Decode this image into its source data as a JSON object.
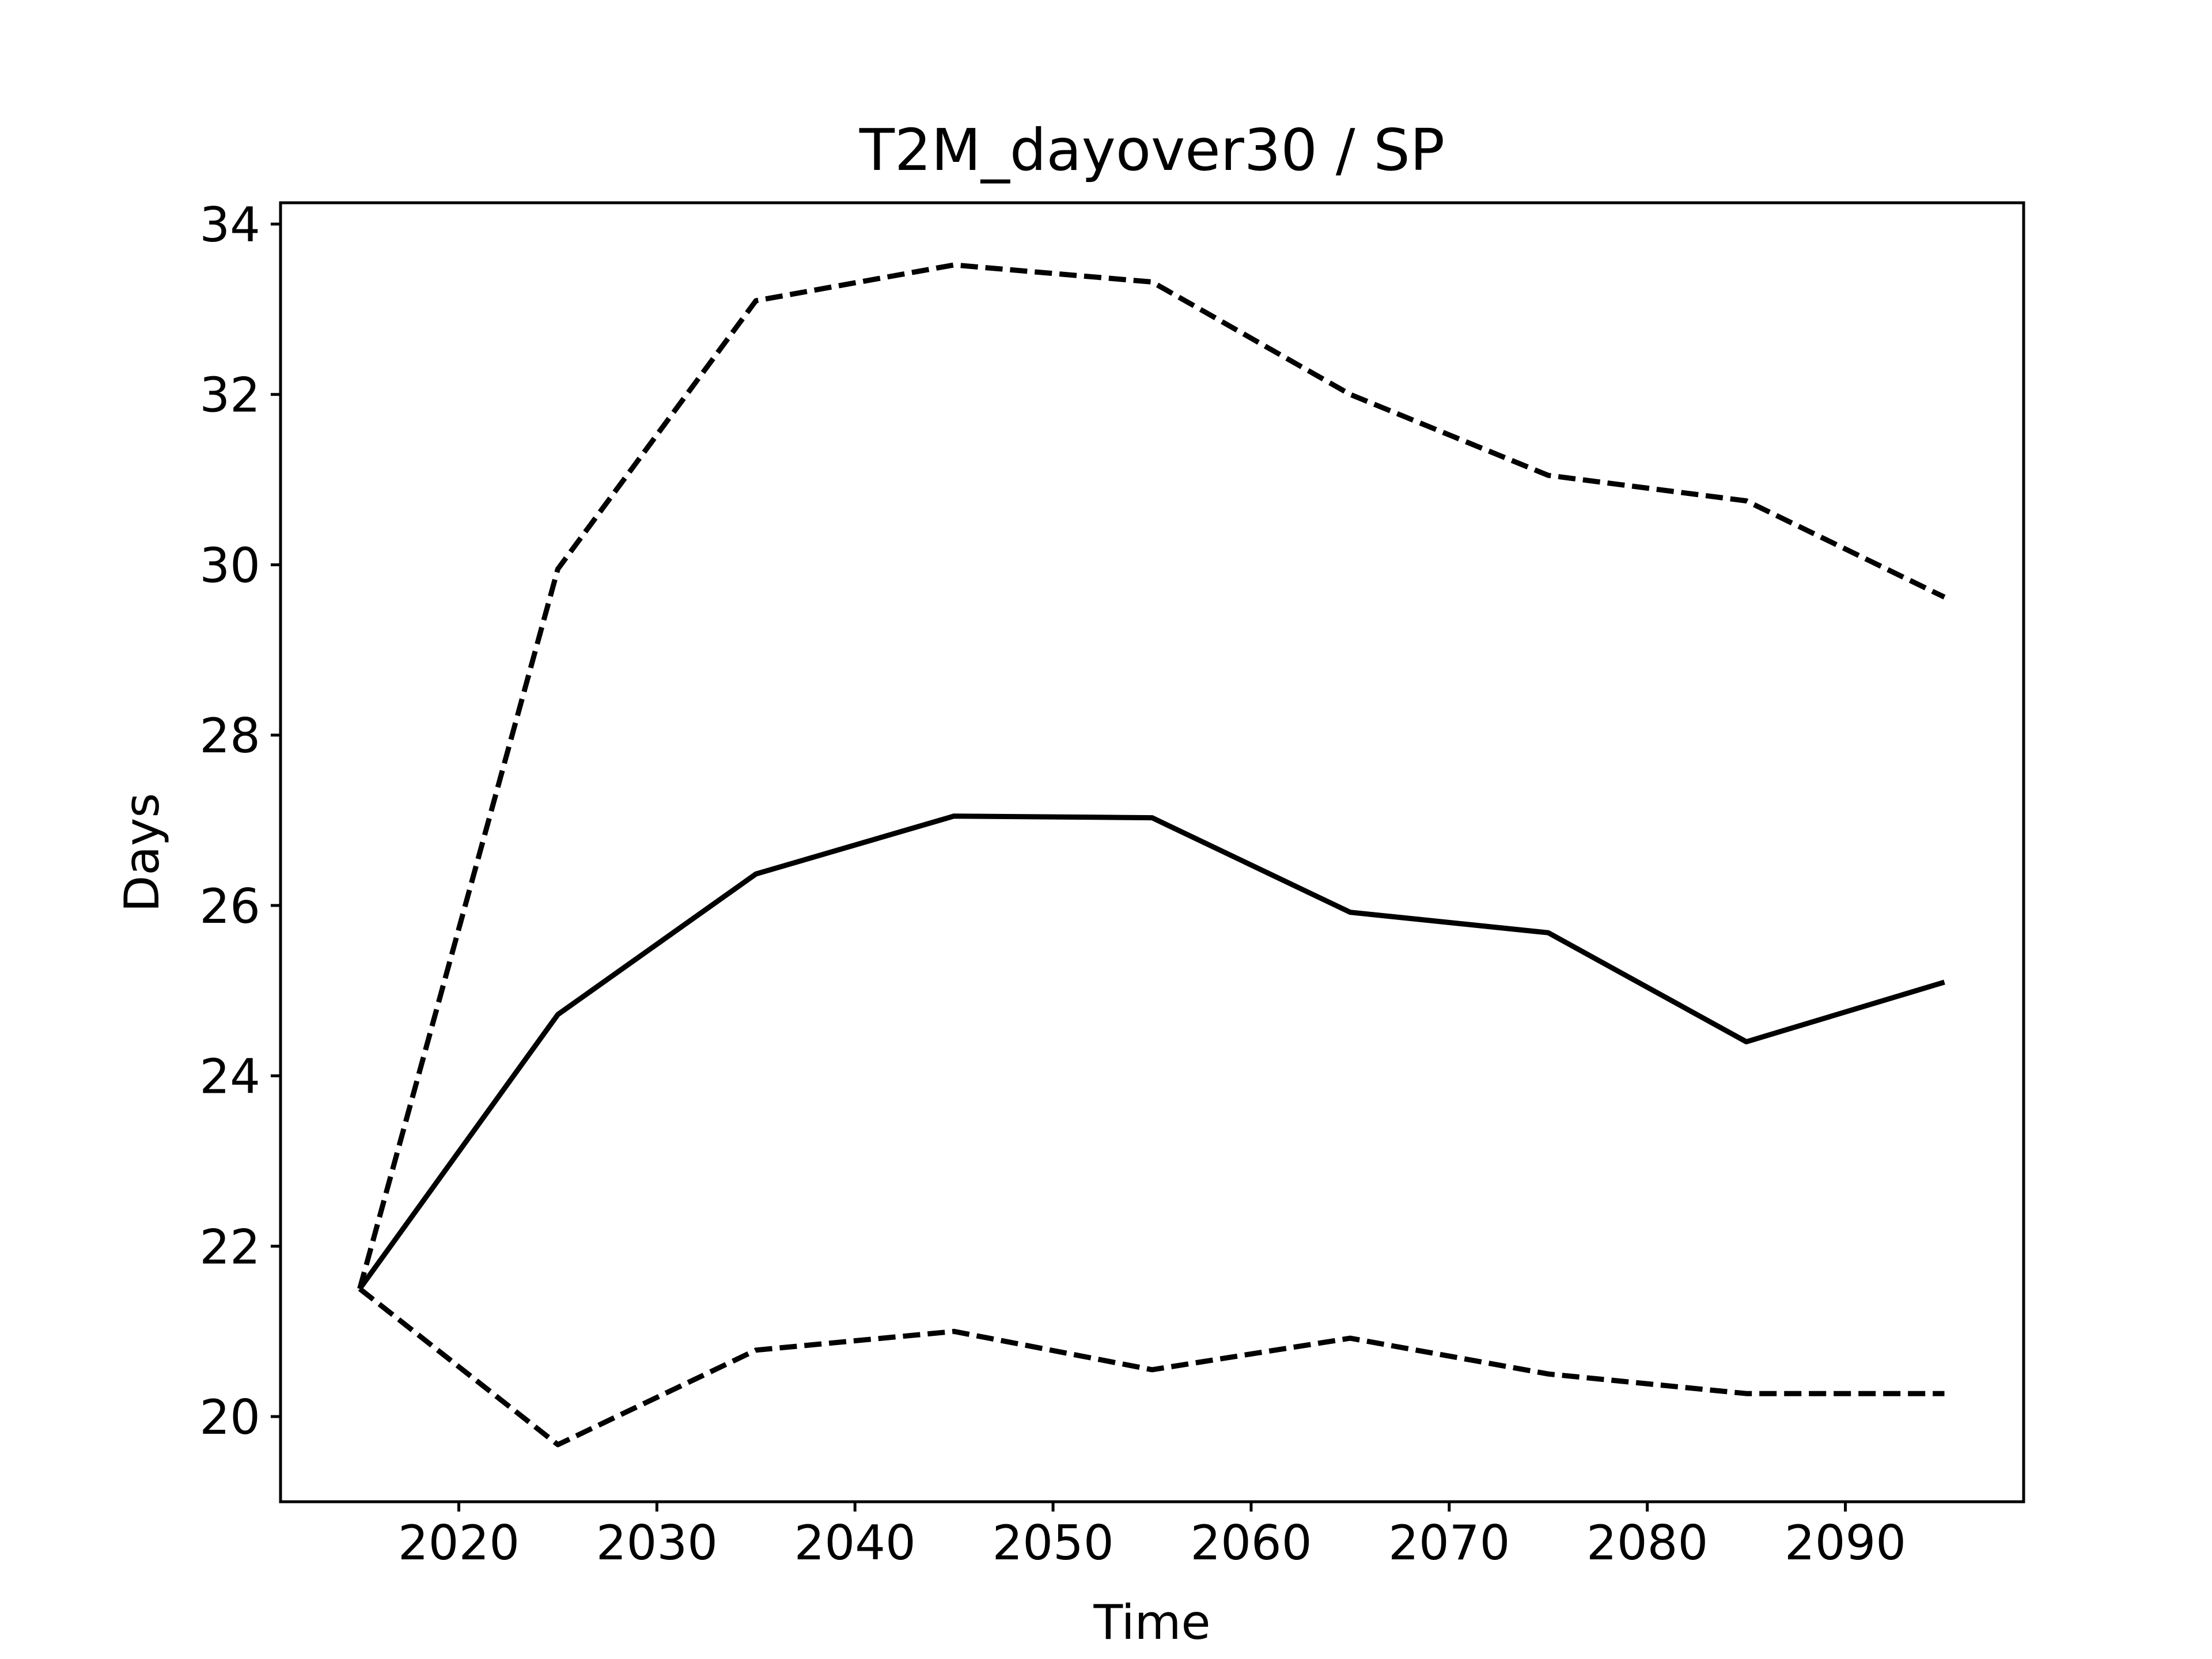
{
  "chart_data": {
    "type": "line",
    "title": "T2M_dayover30 / SP",
    "xlabel": "Time",
    "ylabel": "Days",
    "x": [
      2015,
      2025,
      2035,
      2045,
      2055,
      2065,
      2075,
      2085,
      2095
    ],
    "xlim": [
      2011,
      2099
    ],
    "ylim": [
      19,
      34.25
    ],
    "xticks": [
      2020,
      2030,
      2040,
      2050,
      2060,
      2070,
      2080,
      2090
    ],
    "yticks": [
      20,
      22,
      24,
      26,
      28,
      30,
      32,
      34
    ],
    "grid": false,
    "series": [
      {
        "style": "dashed",
        "color": "#000000",
        "values": [
          21.5,
          29.95,
          33.1,
          33.52,
          33.32,
          32.0,
          31.05,
          30.75,
          29.62
        ]
      },
      {
        "style": "solid",
        "color": "#000000",
        "values": [
          21.5,
          24.72,
          26.37,
          27.05,
          27.03,
          25.92,
          25.68,
          24.4,
          25.1
        ]
      },
      {
        "style": "dashed",
        "color": "#000000",
        "values": [
          21.5,
          19.67,
          20.78,
          21.0,
          20.55,
          20.92,
          20.5,
          20.27,
          20.27
        ]
      }
    ]
  }
}
